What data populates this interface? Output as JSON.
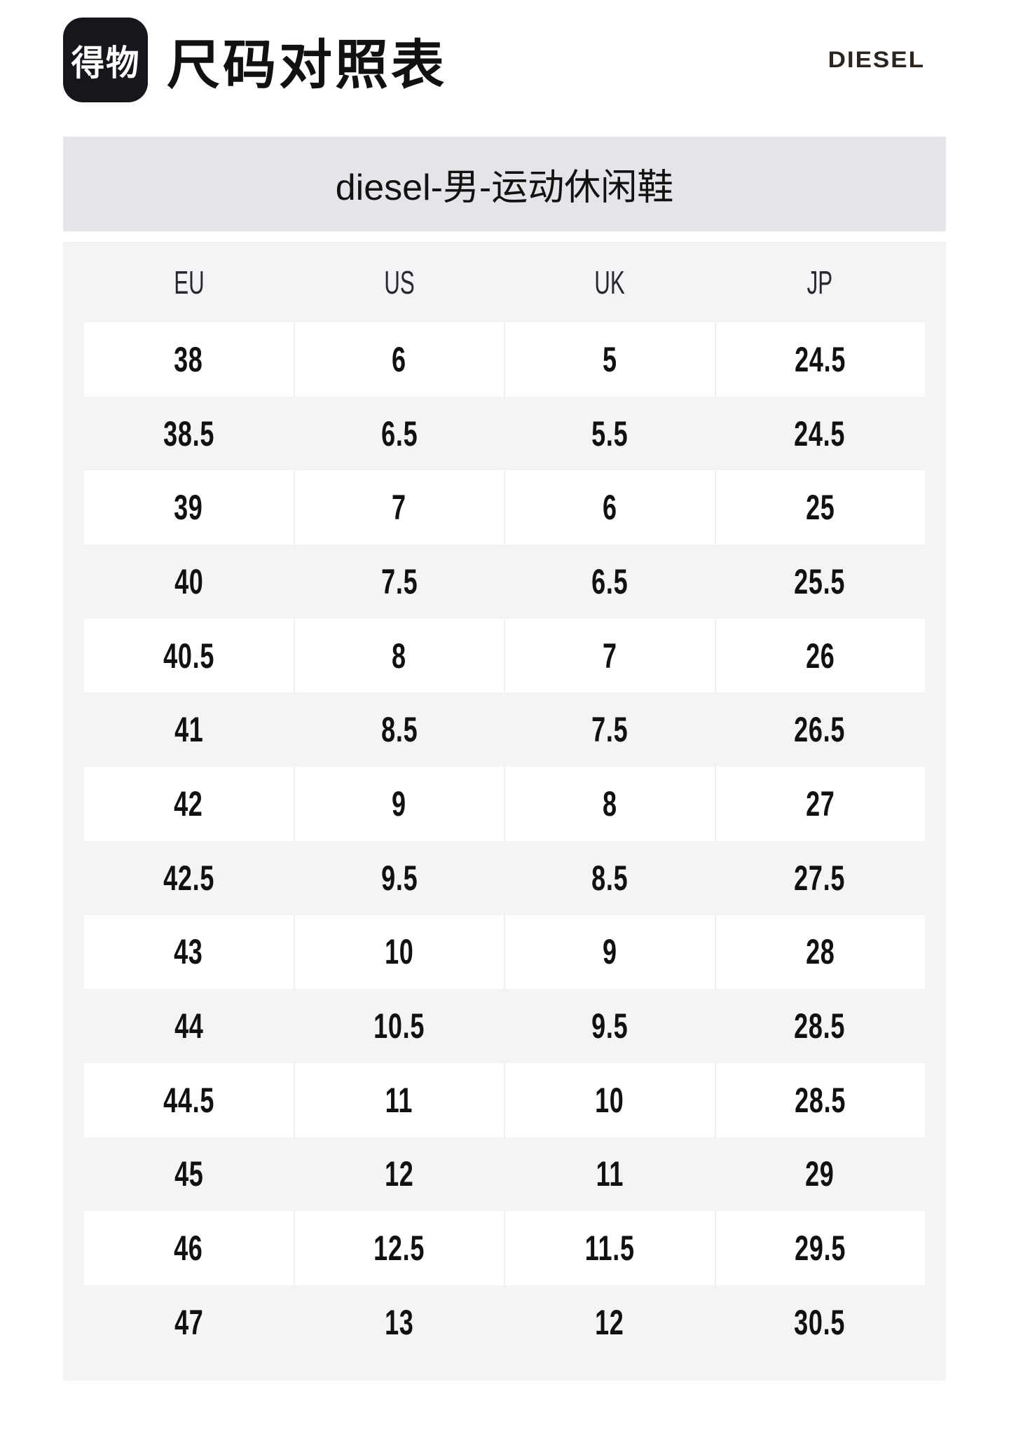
{
  "header": {
    "app_logo_text": "得物",
    "page_title": "尺码对照表",
    "brand_logo_text": "DIESEL"
  },
  "subtitle_bar": {
    "text": "diesel-男-运动休闲鞋"
  },
  "size_table": {
    "columns": [
      "EU",
      "US",
      "UK",
      "JP"
    ],
    "rows": [
      [
        "38",
        "6",
        "5",
        "24.5"
      ],
      [
        "38.5",
        "6.5",
        "5.5",
        "24.5"
      ],
      [
        "39",
        "7",
        "6",
        "25"
      ],
      [
        "40",
        "7.5",
        "6.5",
        "25.5"
      ],
      [
        "40.5",
        "8",
        "7",
        "26"
      ],
      [
        "41",
        "8.5",
        "7.5",
        "26.5"
      ],
      [
        "42",
        "9",
        "8",
        "27"
      ],
      [
        "42.5",
        "9.5",
        "8.5",
        "27.5"
      ],
      [
        "43",
        "10",
        "9",
        "28"
      ],
      [
        "44",
        "10.5",
        "9.5",
        "28.5"
      ],
      [
        "44.5",
        "11",
        "10",
        "28.5"
      ],
      [
        "45",
        "12",
        "11",
        "29"
      ],
      [
        "46",
        "12.5",
        "11.5",
        "29.5"
      ],
      [
        "47",
        "13",
        "12",
        "30.5"
      ]
    ]
  },
  "colors": {
    "band_bg": "#e4e4e9",
    "panel_bg": "#f4f4f7",
    "row_alt_bg": "#ffffff",
    "cell_divider": "#efeff3",
    "text_primary": "#111111",
    "brand_text": "#2b2420",
    "app_logo_bg": "#16161d"
  }
}
